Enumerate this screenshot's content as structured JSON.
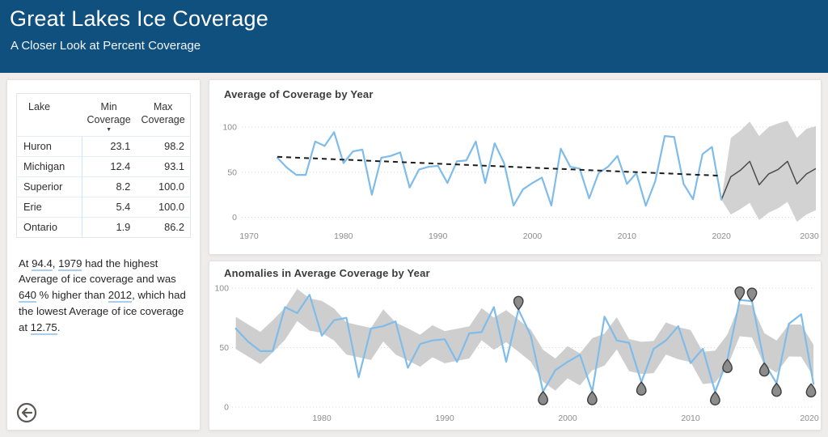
{
  "header": {
    "title": "Great Lakes Ice Coverage",
    "subtitle": "A Closer Look at Percent Coverage"
  },
  "colors": {
    "header_bg": "#10507F",
    "accent_line": "#7FBCE9",
    "band_gray": "#CBCBCB",
    "forecast_band": "#CDCDCD",
    "forecast_line": "#4B4B4B",
    "trend_line": "#1C1C1C",
    "marker_fill": "#8C8C8C",
    "marker_stroke": "#3E3E3E",
    "axis_text": "#8C8C8C",
    "narrative_underline": "#A9CDEA"
  },
  "table": {
    "columns": [
      {
        "label": "Lake",
        "sorted": false
      },
      {
        "label": "Min Coverage",
        "sorted": true,
        "sort_dir": "desc"
      },
      {
        "label": "Max Coverage",
        "sorted": false
      }
    ],
    "rows": [
      {
        "lake": "Huron",
        "min": "23.1",
        "max": "98.2"
      },
      {
        "lake": "Michigan",
        "min": "12.4",
        "max": "93.1"
      },
      {
        "lake": "Superior",
        "min": "8.2",
        "max": "100.0"
      },
      {
        "lake": "Erie",
        "min": "5.4",
        "max": "100.0"
      },
      {
        "lake": "Ontario",
        "min": "1.9",
        "max": "86.2"
      }
    ]
  },
  "narrative": {
    "segments": [
      {
        "t": "At "
      },
      {
        "t": "94.4",
        "u": true
      },
      {
        "t": ", "
      },
      {
        "t": "1979",
        "u": true
      },
      {
        "t": " had the highest Average of ice coverage and was "
      },
      {
        "t": "640",
        "u": true
      },
      {
        "t": " % higher than "
      },
      {
        "t": "2012",
        "u": true
      },
      {
        "t": ", which had the lowest Average of ice coverage at "
      },
      {
        "t": "12.75",
        "u": true
      },
      {
        "t": "."
      }
    ]
  },
  "back_button": {
    "icon": "circled-left-arrow"
  },
  "chart_data": [
    {
      "type": "line",
      "title": "Average of Coverage by Year",
      "x_start": 1973,
      "x": [
        1973,
        1974,
        1975,
        1976,
        1977,
        1978,
        1979,
        1980,
        1981,
        1982,
        1983,
        1984,
        1985,
        1986,
        1987,
        1988,
        1989,
        1990,
        1991,
        1992,
        1993,
        1994,
        1995,
        1996,
        1997,
        1998,
        1999,
        2000,
        2001,
        2002,
        2003,
        2004,
        2005,
        2006,
        2007,
        2008,
        2009,
        2010,
        2011,
        2012,
        2013,
        2014,
        2015,
        2016,
        2017,
        2018,
        2019,
        2020
      ],
      "series": [
        {
          "name": "Average of Coverage",
          "values": [
            66,
            55,
            47,
            47,
            84,
            79,
            94.4,
            60,
            73,
            75,
            25,
            66,
            68,
            72,
            33,
            53,
            56,
            57,
            38,
            62,
            63,
            84,
            38,
            82,
            60,
            13,
            31,
            38,
            44,
            13,
            76,
            56,
            54,
            21,
            49,
            56,
            68,
            37,
            49,
            12.75,
            40,
            90,
            89,
            37,
            20,
            70,
            78,
            19.5
          ]
        }
      ],
      "trend": {
        "x": [
          1973,
          2020
        ],
        "y": [
          67,
          46
        ],
        "style": "dashed"
      },
      "forecast": {
        "years": [
          2020,
          2021,
          2022,
          2023,
          2024,
          2025,
          2026,
          2027,
          2028,
          2029,
          2030
        ],
        "line": [
          19.5,
          45,
          52,
          62,
          36,
          48,
          53,
          62,
          37,
          48,
          54
        ],
        "upper": [
          19.5,
          88,
          96,
          106,
          90,
          100,
          104,
          107,
          88,
          98,
          101
        ],
        "lower": [
          19.5,
          3,
          9,
          16,
          -3,
          5,
          10,
          17,
          -5,
          3,
          8
        ]
      },
      "x_ticks": [
        1970,
        1980,
        1990,
        2000,
        2010,
        2020,
        2030
      ],
      "y_ticks": [
        0,
        50,
        100
      ],
      "ylim": [
        0,
        100
      ],
      "xlim": [
        1970,
        2030
      ],
      "grid": "dotted horizontal",
      "legend": "none"
    },
    {
      "type": "line",
      "title": "Anomalies in Average Coverage by Year",
      "x_start": 1973,
      "x": [
        1973,
        1974,
        1975,
        1976,
        1977,
        1978,
        1979,
        1980,
        1981,
        1982,
        1983,
        1984,
        1985,
        1986,
        1987,
        1988,
        1989,
        1990,
        1991,
        1992,
        1993,
        1994,
        1995,
        1996,
        1997,
        1998,
        1999,
        2000,
        2001,
        2002,
        2003,
        2004,
        2005,
        2006,
        2007,
        2008,
        2009,
        2010,
        2011,
        2012,
        2013,
        2014,
        2015,
        2016,
        2017,
        2018,
        2019,
        2020
      ],
      "series": [
        {
          "name": "Average of Coverage",
          "values": [
            66,
            55,
            47,
            47,
            84,
            79,
            94.4,
            60,
            73,
            75,
            25,
            66,
            68,
            72,
            33,
            53,
            56,
            57,
            38,
            62,
            63,
            84,
            38,
            82,
            60,
            13,
            31,
            38,
            44,
            13,
            76,
            56,
            54,
            21,
            49,
            56,
            68,
            37,
            49,
            12.75,
            40,
            90,
            89,
            37,
            20,
            70,
            78,
            19.5
          ]
        }
      ],
      "expected_band": {
        "window": 3,
        "halfwidth": 13.5,
        "description": "gray expected-range band around smoothed series"
      },
      "anomalies": [
        {
          "year": 1996,
          "value": 82
        },
        {
          "year": 1998,
          "value": 13
        },
        {
          "year": 2002,
          "value": 13
        },
        {
          "year": 2006,
          "value": 21
        },
        {
          "year": 2012,
          "value": 12.75
        },
        {
          "year": 2013,
          "value": 40
        },
        {
          "year": 2014,
          "value": 90
        },
        {
          "year": 2015,
          "value": 89
        },
        {
          "year": 2016,
          "value": 37
        },
        {
          "year": 2017,
          "value": 20
        },
        {
          "year": 2020,
          "value": 19.5
        }
      ],
      "x_ticks": [
        1980,
        1990,
        2000,
        2010,
        2020
      ],
      "y_ticks": [
        0,
        50,
        100
      ],
      "ylim": [
        0,
        100
      ],
      "xlim": [
        1973,
        2021
      ],
      "grid": "dotted horizontal",
      "legend": "none"
    }
  ]
}
